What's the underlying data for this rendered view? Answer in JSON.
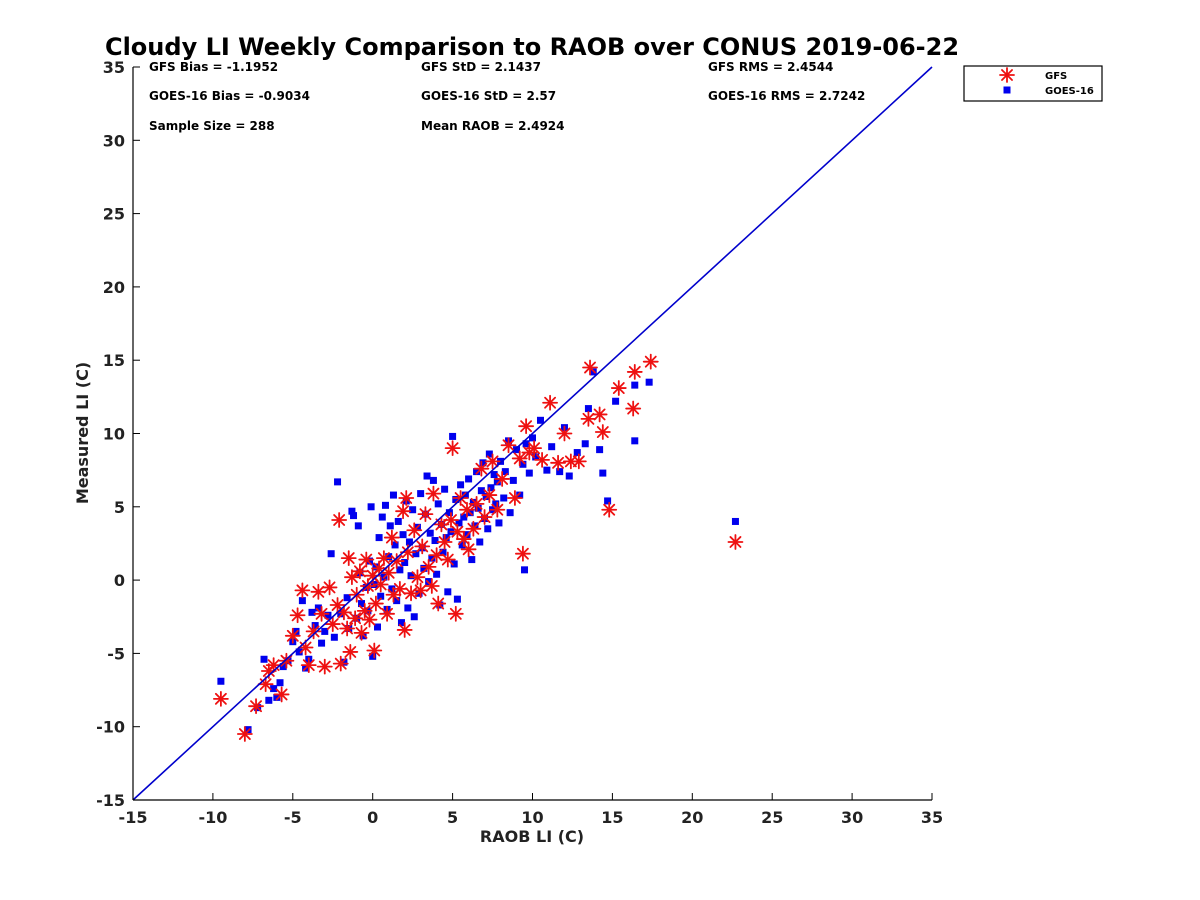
{
  "chart_data": {
    "type": "scatter",
    "title": "Cloudy LI Weekly Comparison to RAOB over CONUS 2019-06-22",
    "xlabel": "RAOB LI (C)",
    "ylabel": "Measured LI (C)",
    "xlim": [
      -15,
      35
    ],
    "ylim": [
      -15,
      35
    ],
    "xticks": [
      "-15",
      "-10",
      "-5",
      "0",
      "5",
      "10",
      "15",
      "20",
      "25",
      "30",
      "35"
    ],
    "yticks": [
      "-15",
      "-10",
      "-5",
      "0",
      "5",
      "10",
      "15",
      "20",
      "25",
      "30",
      "35"
    ],
    "grid": false,
    "legend_position": "outside-top-right",
    "reference_line": {
      "from": [
        -15,
        -15
      ],
      "to": [
        35,
        35
      ],
      "color": "#0000cc"
    },
    "stats": {
      "gfs_bias": "GFS Bias = -1.1952",
      "gfs_std": "GFS StD = 2.1437",
      "gfs_rms": "GFS RMS = 2.4544",
      "goes_bias": "GOES-16 Bias = -0.9034",
      "goes_std": "GOES-16 StD = 2.57",
      "goes_rms": "GOES-16 RMS = 2.7242",
      "sample_size": "Sample Size = 288",
      "mean_raob": "Mean RAOB = 2.4924"
    },
    "series": [
      {
        "name": "GFS",
        "marker": "asterisk",
        "color": "#ee1111",
        "points": [
          [
            -9.5,
            -8.1
          ],
          [
            -8,
            -10.5
          ],
          [
            -7.3,
            -8.6
          ],
          [
            -6.7,
            -7.1
          ],
          [
            -6.5,
            -6.2
          ],
          [
            -6.2,
            -5.8
          ],
          [
            -5.7,
            -7.8
          ],
          [
            -5.4,
            -5.5
          ],
          [
            -5,
            -3.8
          ],
          [
            -4.7,
            -2.4
          ],
          [
            -4.4,
            -0.7
          ],
          [
            -4.2,
            -4.6
          ],
          [
            -4,
            -5.8
          ],
          [
            -3.7,
            -3.5
          ],
          [
            -3.4,
            -0.8
          ],
          [
            -3.2,
            -2.3
          ],
          [
            -3,
            -5.9
          ],
          [
            -2.7,
            -0.5
          ],
          [
            -2.5,
            -3
          ],
          [
            -2.2,
            -1.7
          ],
          [
            -2.1,
            4.1
          ],
          [
            -2,
            -5.7
          ],
          [
            -1.8,
            -2.2
          ],
          [
            -1.6,
            -3.3
          ],
          [
            -1.5,
            1.5
          ],
          [
            -1.4,
            -4.9
          ],
          [
            -1.3,
            0.2
          ],
          [
            -1.1,
            -2.6
          ],
          [
            -1,
            -1
          ],
          [
            -0.8,
            0.6
          ],
          [
            -0.7,
            -3.6
          ],
          [
            -0.5,
            -2.1
          ],
          [
            -0.4,
            1.4
          ],
          [
            -0.3,
            -0.4
          ],
          [
            -0.2,
            -2.7
          ],
          [
            0,
            0.3
          ],
          [
            0.1,
            -4.8
          ],
          [
            0.2,
            -1.6
          ],
          [
            0.4,
            0.8
          ],
          [
            0.5,
            -0.3
          ],
          [
            0.7,
            1.5
          ],
          [
            0.9,
            -2.3
          ],
          [
            1,
            0.5
          ],
          [
            1.2,
            2.9
          ],
          [
            1.3,
            -1
          ],
          [
            1.5,
            1.3
          ],
          [
            1.7,
            -0.6
          ],
          [
            1.9,
            4.7
          ],
          [
            2,
            -3.4
          ],
          [
            2.1,
            5.6
          ],
          [
            2.2,
            1.9
          ],
          [
            2.4,
            -0.9
          ],
          [
            2.6,
            3.4
          ],
          [
            2.8,
            0.2
          ],
          [
            3,
            -0.7
          ],
          [
            3.1,
            2.3
          ],
          [
            3.3,
            4.5
          ],
          [
            3.5,
            0.9
          ],
          [
            3.7,
            -0.4
          ],
          [
            3.8,
            5.9
          ],
          [
            4,
            1.7
          ],
          [
            4.1,
            -1.6
          ],
          [
            4.3,
            3.8
          ],
          [
            4.5,
            2.6
          ],
          [
            4.7,
            1.4
          ],
          [
            4.9,
            4.1
          ],
          [
            5,
            9
          ],
          [
            5.2,
            -2.3
          ],
          [
            5.3,
            3.3
          ],
          [
            5.5,
            5.6
          ],
          [
            5.7,
            2.8
          ],
          [
            5.9,
            4.8
          ],
          [
            6,
            2.1
          ],
          [
            6.3,
            3.5
          ],
          [
            6.5,
            5.2
          ],
          [
            6.8,
            7.6
          ],
          [
            7,
            4.3
          ],
          [
            7.3,
            5.8
          ],
          [
            7.5,
            8.1
          ],
          [
            7.8,
            4.8
          ],
          [
            8.1,
            6.9
          ],
          [
            8.5,
            9.2
          ],
          [
            8.9,
            5.6
          ],
          [
            9.2,
            8.3
          ],
          [
            9.4,
            1.8
          ],
          [
            9.6,
            10.5
          ],
          [
            9.8,
            8.7
          ],
          [
            10.1,
            9
          ],
          [
            10.6,
            8.2
          ],
          [
            11.1,
            12.1
          ],
          [
            11.6,
            8
          ],
          [
            12,
            10
          ],
          [
            12.4,
            8.1
          ],
          [
            12.9,
            8.1
          ],
          [
            13.5,
            11
          ],
          [
            13.6,
            14.5
          ],
          [
            14.2,
            11.3
          ],
          [
            14.4,
            10.1
          ],
          [
            14.8,
            4.8
          ],
          [
            15.4,
            13.1
          ],
          [
            16.3,
            11.7
          ],
          [
            16.4,
            14.2
          ],
          [
            17.4,
            14.9
          ],
          [
            22.7,
            2.6
          ]
        ]
      },
      {
        "name": "GOES-16",
        "marker": "square",
        "color": "#0000ee",
        "points": [
          [
            -9.5,
            -6.9
          ],
          [
            -7.8,
            -10.2
          ],
          [
            -7.2,
            -8.7
          ],
          [
            -6.8,
            -5.4
          ],
          [
            -6.5,
            -8.2
          ],
          [
            -6.2,
            -7.4
          ],
          [
            -6,
            -8
          ],
          [
            -5.8,
            -7
          ],
          [
            -5.6,
            -5.9
          ],
          [
            -5.3,
            -5.5
          ],
          [
            -5,
            -4.2
          ],
          [
            -4.8,
            -3.5
          ],
          [
            -4.6,
            -4.9
          ],
          [
            -4.4,
            -1.4
          ],
          [
            -4.2,
            -6
          ],
          [
            -4,
            -5.4
          ],
          [
            -3.8,
            -2.2
          ],
          [
            -3.6,
            -3.1
          ],
          [
            -3.4,
            -1.9
          ],
          [
            -3.2,
            -4.3
          ],
          [
            -3,
            -3.5
          ],
          [
            -2.8,
            -2.4
          ],
          [
            -2.6,
            1.8
          ],
          [
            -2.4,
            -3.9
          ],
          [
            -2.2,
            6.7
          ],
          [
            -2,
            -2.3
          ],
          [
            -1.8,
            -5.6
          ],
          [
            -1.6,
            -1.2
          ],
          [
            -1.5,
            -3.3
          ],
          [
            -1.3,
            4.7
          ],
          [
            -1.2,
            4.4
          ],
          [
            -1,
            -2.6
          ],
          [
            -0.9,
            3.7
          ],
          [
            -0.8,
            0.5
          ],
          [
            -0.7,
            -1.6
          ],
          [
            -0.6,
            -3.8
          ],
          [
            -0.4,
            -0.5
          ],
          [
            -0.3,
            -2.1
          ],
          [
            -0.2,
            1.3
          ],
          [
            -0.1,
            5
          ],
          [
            0,
            -5.2
          ],
          [
            0.1,
            -0.3
          ],
          [
            0.2,
            0.9
          ],
          [
            0.3,
            -3.2
          ],
          [
            0.4,
            2.9
          ],
          [
            0.5,
            -1.1
          ],
          [
            0.6,
            4.3
          ],
          [
            0.7,
            0.2
          ],
          [
            0.8,
            5.1
          ],
          [
            0.9,
            -2
          ],
          [
            1,
            1.6
          ],
          [
            1.1,
            3.7
          ],
          [
            1.2,
            -0.6
          ],
          [
            1.3,
            5.8
          ],
          [
            1.4,
            2.4
          ],
          [
            1.5,
            -1.4
          ],
          [
            1.6,
            4
          ],
          [
            1.7,
            0.7
          ],
          [
            1.8,
            -2.9
          ],
          [
            1.9,
            3.1
          ],
          [
            2,
            1.2
          ],
          [
            2.1,
            5.4
          ],
          [
            2.2,
            -1.9
          ],
          [
            2.3,
            2.6
          ],
          [
            2.4,
            0.3
          ],
          [
            2.5,
            4.8
          ],
          [
            2.6,
            -2.5
          ],
          [
            2.7,
            1.8
          ],
          [
            2.8,
            3.6
          ],
          [
            2.9,
            -0.9
          ],
          [
            3,
            5.9
          ],
          [
            3.1,
            2.2
          ],
          [
            3.2,
            0.8
          ],
          [
            3.3,
            4.5
          ],
          [
            3.4,
            7.1
          ],
          [
            3.5,
            -0.1
          ],
          [
            3.6,
            3.2
          ],
          [
            3.7,
            1.5
          ],
          [
            3.8,
            6.8
          ],
          [
            3.9,
            2.7
          ],
          [
            4,
            0.4
          ],
          [
            4.1,
            5.2
          ],
          [
            4.2,
            -1.7
          ],
          [
            4.3,
            3.8
          ],
          [
            4.4,
            1.9
          ],
          [
            4.5,
            6.2
          ],
          [
            4.6,
            2.9
          ],
          [
            4.7,
            -0.8
          ],
          [
            4.8,
            4.6
          ],
          [
            4.9,
            3.3
          ],
          [
            5,
            9.8
          ],
          [
            5.1,
            1.1
          ],
          [
            5.2,
            5.5
          ],
          [
            5.3,
            -1.3
          ],
          [
            5.4,
            3.9
          ],
          [
            5.5,
            6.5
          ],
          [
            5.6,
            2.4
          ],
          [
            5.7,
            4.3
          ],
          [
            5.8,
            5.8
          ],
          [
            5.9,
            3.1
          ],
          [
            6,
            6.9
          ],
          [
            6.1,
            4.6
          ],
          [
            6.2,
            1.4
          ],
          [
            6.3,
            5.3
          ],
          [
            6.4,
            3.7
          ],
          [
            6.5,
            7.4
          ],
          [
            6.6,
            4.9
          ],
          [
            6.7,
            2.6
          ],
          [
            6.8,
            6.1
          ],
          [
            6.9,
            8
          ],
          [
            7,
            4.2
          ],
          [
            7.1,
            5.7
          ],
          [
            7.2,
            3.5
          ],
          [
            7.3,
            8.6
          ],
          [
            7.4,
            6.3
          ],
          [
            7.5,
            4.8
          ],
          [
            7.6,
            7.2
          ],
          [
            7.7,
            5.2
          ],
          [
            7.8,
            6.7
          ],
          [
            7.9,
            3.9
          ],
          [
            8,
            8.1
          ],
          [
            8.2,
            5.6
          ],
          [
            8.3,
            7.4
          ],
          [
            8.5,
            9.5
          ],
          [
            8.6,
            4.6
          ],
          [
            8.8,
            6.8
          ],
          [
            9,
            8.9
          ],
          [
            9.2,
            5.8
          ],
          [
            9.4,
            7.9
          ],
          [
            9.5,
            0.7
          ],
          [
            9.6,
            9.3
          ],
          [
            9.8,
            7.3
          ],
          [
            10,
            9.7
          ],
          [
            10.2,
            8.4
          ],
          [
            10.5,
            10.9
          ],
          [
            10.9,
            7.5
          ],
          [
            11.2,
            9.1
          ],
          [
            11.7,
            7.4
          ],
          [
            12,
            10.4
          ],
          [
            12.3,
            7.1
          ],
          [
            12.8,
            8.7
          ],
          [
            13.3,
            9.3
          ],
          [
            13.5,
            11.7
          ],
          [
            13.8,
            14.2
          ],
          [
            14.2,
            8.9
          ],
          [
            14.4,
            7.3
          ],
          [
            14.7,
            5.4
          ],
          [
            15.2,
            12.2
          ],
          [
            16.4,
            13.3
          ],
          [
            16.4,
            9.5
          ],
          [
            17.3,
            13.5
          ],
          [
            22.7,
            4
          ]
        ]
      }
    ]
  }
}
